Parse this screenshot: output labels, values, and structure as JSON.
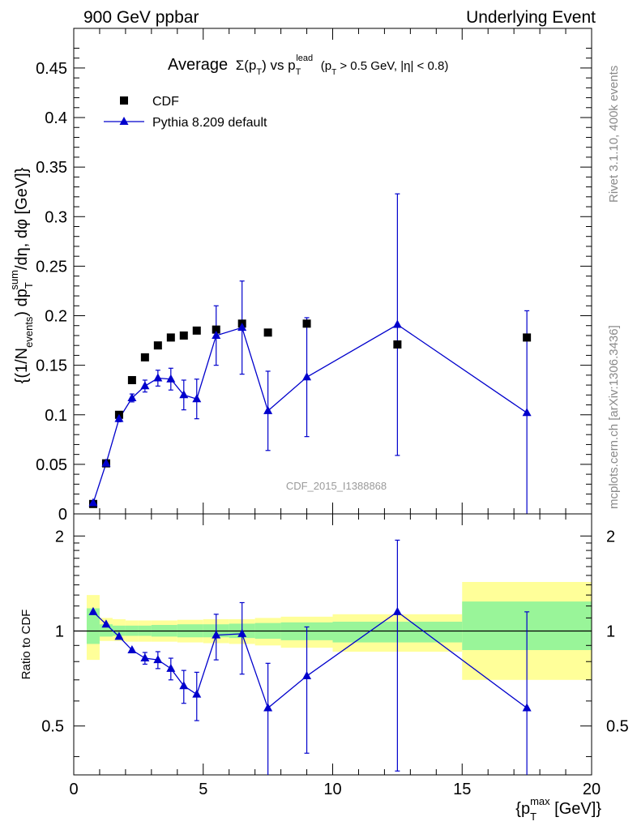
{
  "header": {
    "left": "900 GeV ppbar",
    "right": "Underlying Event"
  },
  "side_notes": {
    "rivet": "Rivet 3.1.10,  400k events",
    "mcplots": "mcplots.cern.ch [arXiv:1306.3436]"
  },
  "plot": {
    "title_parts": {
      "average": "Average",
      "sigma": "Σ(p",
      "sigma_sub": "T",
      "close": ") vs p",
      "lead_sup": "lead",
      "lead_sub": "T",
      "cuts_open": "(p",
      "cuts_sub": "T",
      "cuts_rest": " > 0.5 GeV, |η| < 0.8)"
    },
    "histogram_id": "CDF_2015_I1388868",
    "ylabel_parts": {
      "a": "{(1/N",
      "a_sub": "events",
      "b": ") dp",
      "b_sup": "sum",
      "b_sub": "T",
      "c": "/dη, dφ [GeV]}"
    },
    "xlabel_parts": {
      "a": "{p",
      "a_sup": "max",
      "a_sub": "T",
      "b": " [GeV]}"
    },
    "ratio_ylabel": "Ratio to CDF"
  },
  "legend": {
    "position": "top-left",
    "entries": [
      {
        "label": "CDF",
        "color": "#000000",
        "marker": "square"
      },
      {
        "label": "Pythia 8.209 default",
        "color": "#0000cc",
        "marker": "triangle"
      }
    ]
  },
  "chart_data": [
    {
      "type": "scatter",
      "panel": "main",
      "xlim": [
        0,
        20
      ],
      "ylim": [
        0,
        0.49
      ],
      "yticks": [
        {
          "v": 0,
          "label": "0"
        },
        {
          "v": 0.05,
          "label": "0.05"
        },
        {
          "v": 0.1,
          "label": "0.1"
        },
        {
          "v": 0.15,
          "label": "0.15"
        },
        {
          "v": 0.2,
          "label": "0.2"
        },
        {
          "v": 0.25,
          "label": "0.25"
        },
        {
          "v": 0.3,
          "label": "0.3"
        },
        {
          "v": 0.35,
          "label": "0.35"
        },
        {
          "v": 0.4,
          "label": "0.4"
        },
        {
          "v": 0.45,
          "label": "0.45"
        }
      ],
      "series": [
        {
          "name": "CDF",
          "color": "#000000",
          "marker": "square",
          "x": [
            0.75,
            1.25,
            1.75,
            2.25,
            2.75,
            3.25,
            3.75,
            4.25,
            4.75,
            5.5,
            6.5,
            7.5,
            9.0,
            12.5,
            17.5
          ],
          "y": [
            0.01,
            0.051,
            0.1,
            0.135,
            0.158,
            0.17,
            0.178,
            0.18,
            0.185,
            0.186,
            0.192,
            0.183,
            0.192,
            0.171,
            0.178
          ]
        },
        {
          "name": "Pythia 8.209 default",
          "color": "#0000cc",
          "marker": "triangle",
          "x": [
            0.75,
            1.25,
            1.75,
            2.25,
            2.75,
            3.25,
            3.75,
            4.25,
            4.75,
            5.5,
            6.5,
            7.5,
            9.0,
            12.5,
            17.5
          ],
          "y": [
            0.011,
            0.051,
            0.096,
            0.117,
            0.129,
            0.137,
            0.136,
            0.12,
            0.116,
            0.18,
            0.188,
            0.104,
            0.138,
            0.191,
            0.102
          ],
          "err": [
            0.001,
            0.002,
            0.003,
            0.004,
            0.006,
            0.008,
            0.011,
            0.015,
            0.02,
            0.03,
            0.047,
            0.04,
            0.06,
            0.132,
            0.103
          ]
        }
      ]
    },
    {
      "type": "line",
      "panel": "ratio",
      "xlim": [
        0,
        20
      ],
      "ylim": [
        0.35,
        2.35
      ],
      "reference": 1,
      "yticks": [
        {
          "v": 0.5,
          "label": "0.5"
        },
        {
          "v": 1,
          "label": "1"
        },
        {
          "v": 2,
          "label": "2"
        }
      ],
      "xticks": [
        {
          "v": 0,
          "label": "0"
        },
        {
          "v": 5,
          "label": "5"
        },
        {
          "v": 10,
          "label": "10"
        },
        {
          "v": 15,
          "label": "15"
        },
        {
          "v": 20,
          "label": "20"
        }
      ],
      "data_bands": [
        {
          "x0": 0.5,
          "x1": 1.0,
          "y_lo": 0.81,
          "y_hi": 1.3,
          "g_lo": 0.91,
          "g_hi": 1.18
        },
        {
          "x0": 1.0,
          "x1": 1.5,
          "y_lo": 0.93,
          "y_hi": 1.1,
          "g_lo": 0.96,
          "g_hi": 1.05
        },
        {
          "x0": 1.5,
          "x1": 2.0,
          "y_lo": 0.93,
          "y_hi": 1.09,
          "g_lo": 0.965,
          "g_hi": 1.04
        },
        {
          "x0": 2.0,
          "x1": 2.5,
          "y_lo": 0.925,
          "y_hi": 1.08,
          "g_lo": 0.965,
          "g_hi": 1.04
        },
        {
          "x0": 2.5,
          "x1": 3.0,
          "y_lo": 0.925,
          "y_hi": 1.08,
          "g_lo": 0.965,
          "g_hi": 1.04
        },
        {
          "x0": 3.0,
          "x1": 4.0,
          "y_lo": 0.925,
          "y_hi": 1.08,
          "g_lo": 0.96,
          "g_hi": 1.045
        },
        {
          "x0": 4.0,
          "x1": 5.0,
          "y_lo": 0.92,
          "y_hi": 1.085,
          "g_lo": 0.955,
          "g_hi": 1.05
        },
        {
          "x0": 5.0,
          "x1": 6.0,
          "y_lo": 0.915,
          "y_hi": 1.09,
          "g_lo": 0.955,
          "g_hi": 1.05
        },
        {
          "x0": 6.0,
          "x1": 7.0,
          "y_lo": 0.91,
          "y_hi": 1.09,
          "g_lo": 0.95,
          "g_hi": 1.055
        },
        {
          "x0": 7.0,
          "x1": 8.0,
          "y_lo": 0.9,
          "y_hi": 1.1,
          "g_lo": 0.945,
          "g_hi": 1.06
        },
        {
          "x0": 8.0,
          "x1": 10.0,
          "y_lo": 0.885,
          "y_hi": 1.11,
          "g_lo": 0.935,
          "g_hi": 1.065
        },
        {
          "x0": 10.0,
          "x1": 15.0,
          "y_lo": 0.86,
          "y_hi": 1.13,
          "g_lo": 0.92,
          "g_hi": 1.07
        },
        {
          "x0": 15.0,
          "x1": 20.0,
          "y_lo": 0.7,
          "y_hi": 1.43,
          "g_lo": 0.87,
          "g_hi": 1.24
        }
      ],
      "series": [
        {
          "name": "Pythia 8.209 default",
          "color": "#0000cc",
          "x": [
            0.75,
            1.25,
            1.75,
            2.25,
            2.75,
            3.25,
            3.75,
            4.25,
            4.75,
            5.5,
            6.5,
            7.5,
            9.0,
            12.5,
            17.5
          ],
          "y": [
            1.15,
            1.05,
            0.96,
            0.87,
            0.82,
            0.81,
            0.76,
            0.67,
            0.63,
            0.97,
            0.98,
            0.57,
            0.72,
            1.15,
            0.57
          ],
          "err": [
            0.0,
            0.0,
            0.0,
            0.0,
            0.035,
            0.05,
            0.06,
            0.08,
            0.11,
            0.16,
            0.25,
            0.22,
            0.31,
            0.79,
            0.58
          ]
        }
      ]
    }
  ]
}
